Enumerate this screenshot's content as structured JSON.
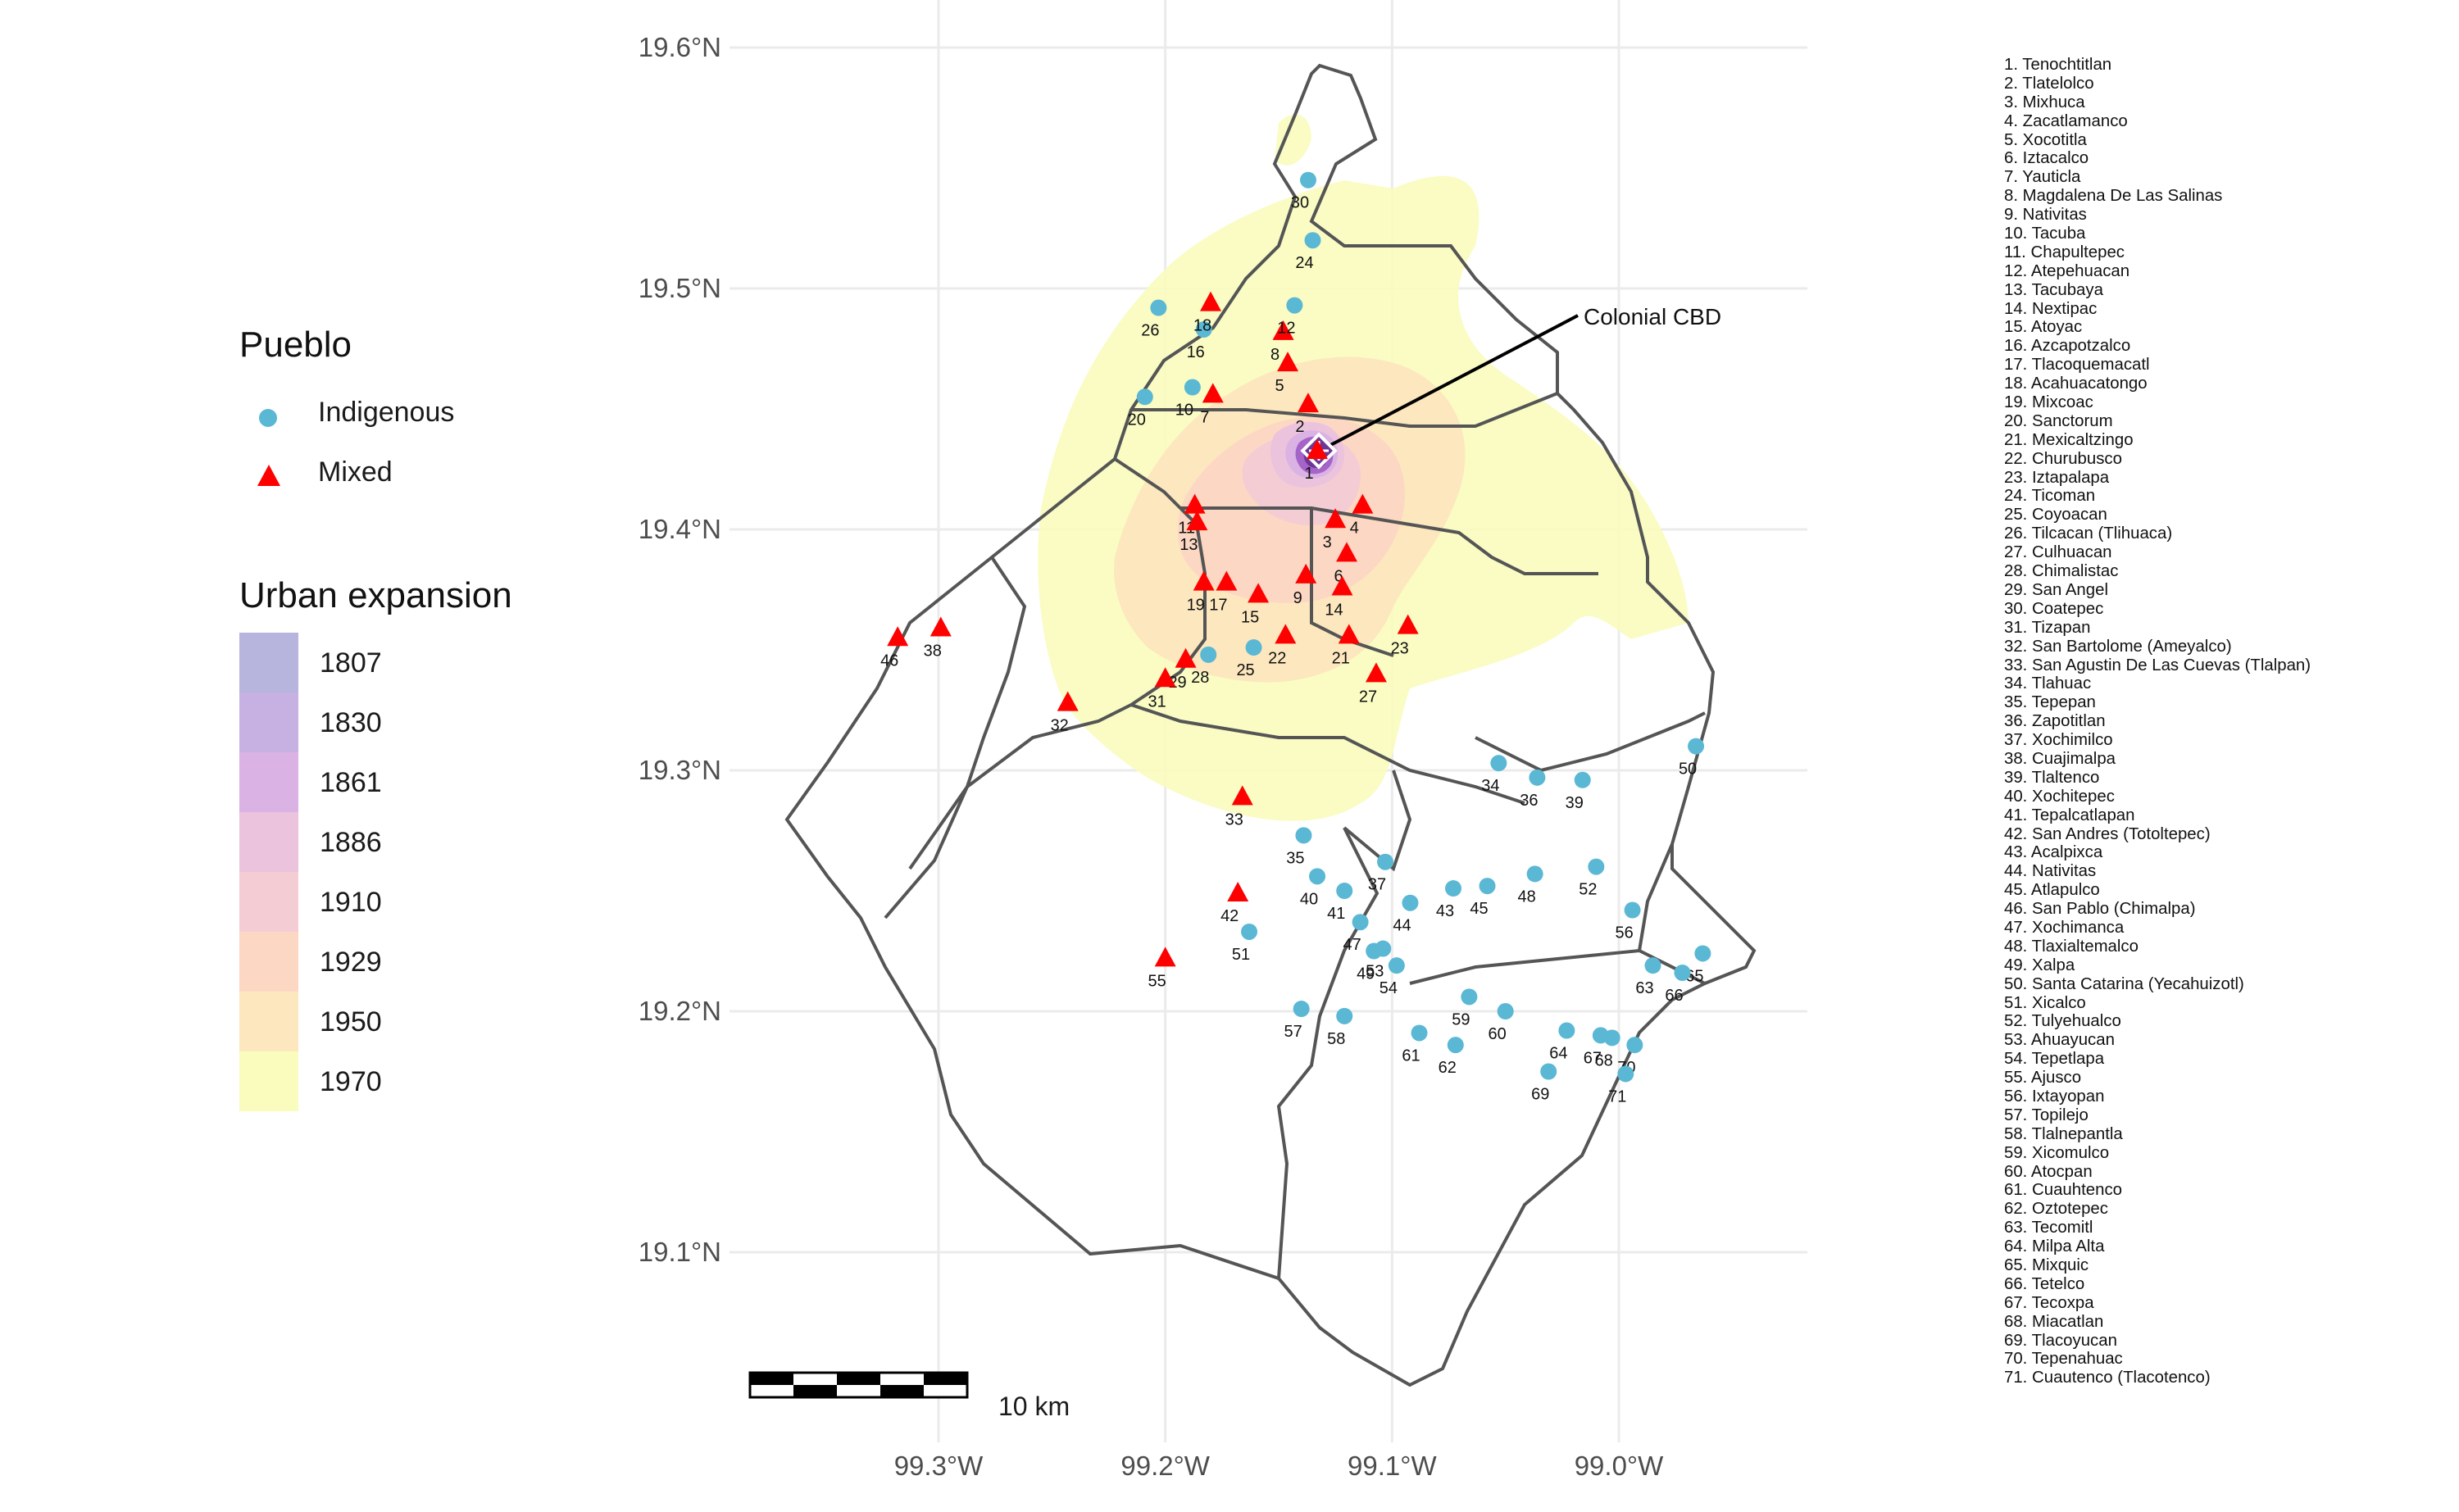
{
  "axes": {
    "y_ticks": [
      "19.6°N",
      "19.5°N",
      "19.4°N",
      "19.3°N",
      "19.2°N",
      "19.1°N"
    ],
    "x_ticks": [
      "99.3°W",
      "99.2°W",
      "99.1°W",
      "99.0°W"
    ]
  },
  "legend_pueblo": {
    "title": "Pueblo",
    "items": [
      {
        "label": "Indigenous",
        "color": "#5ab8d4",
        "shape": "circle"
      },
      {
        "label": "Mixed",
        "color": "#ff0000",
        "shape": "triangle"
      }
    ]
  },
  "legend_expansion": {
    "title": "Urban expansion",
    "items": [
      {
        "label": "1807",
        "color": "#b7b4dd"
      },
      {
        "label": "1830",
        "color": "#c7b1e3"
      },
      {
        "label": "1861",
        "color": "#dbb2e4"
      },
      {
        "label": "1886",
        "color": "#ebc3dd"
      },
      {
        "label": "1910",
        "color": "#f4ccd4"
      },
      {
        "label": "1929",
        "color": "#fcd7c3"
      },
      {
        "label": "1950",
        "color": "#fde7be"
      },
      {
        "label": "1970",
        "color": "#fafcbe"
      }
    ]
  },
  "annotation": {
    "label": "Colonial CBD"
  },
  "scale_bar": {
    "label": "10 km"
  },
  "pueblo_list": [
    "1. Tenochtitlan",
    "2. Tlatelolco",
    "3. Mixhuca",
    "4. Zacatlamanco",
    "5. Xocotitla",
    "6. Iztacalco",
    "7. Yauticla",
    "8. Magdalena De Las Salinas",
    "9. Nativitas",
    "10. Tacuba",
    "11. Chapultepec",
    "12. Atepehuacan",
    "13. Tacubaya",
    "14. Nextipac",
    "15. Atoyac",
    "16. Azcapotzalco",
    "17. Tlacoquemacatl",
    "18. Acahuacatongo",
    "19. Mixcoac",
    "20. Sanctorum",
    "21. Mexicaltzingo",
    "22. Churubusco",
    "23. Iztapalapa",
    "24. Ticoman",
    "25. Coyoacan",
    "26. Tilcacan (Tlihuaca)",
    "27. Culhuacan",
    "28. Chimalistac",
    "29. San Angel",
    "30. Coatepec",
    "31. Tizapan",
    "32. San Bartolome (Ameyalco)",
    "33. San Agustin De Las Cuevas (Tlalpan)",
    "34. Tlahuac",
    "35. Tepepan",
    "36. Zapotitlan",
    "37. Xochimilco",
    "38. Cuajimalpa",
    "39. Tlaltenco",
    "40. Xochitepec",
    "41. Tepalcatlapan",
    "42. San Andres (Totoltepec)",
    "43. Acalpixca",
    "44. Nativitas",
    "45. Atlapulco",
    "46. San Pablo (Chimalpa)",
    "47. Xochimanca",
    "48. Tlaxialtemalco",
    "49. Xalpa",
    "50. Santa Catarina (Yecahuizotl)",
    "51. Xicalco",
    "52. Tulyehualco",
    "53. Ahuayucan",
    "54. Tepetlapa",
    "55. Ajusco",
    "56. Ixtayopan",
    "57. Topilejo",
    "58. Tlalnepantla",
    "59. Xicomulco",
    "60. Atocpan",
    "61. Cuauhtenco",
    "62. Oztotepec",
    "63. Tecomitl",
    "64. Milpa Alta",
    "65. Mixquic",
    "66. Tetelco",
    "67. Tecoxpa",
    "68. Miacatlan",
    "69. Tlacoyucan",
    "70. Tepenahuac",
    "71. Cuautenco (Tlacotenco)"
  ],
  "points": [
    {
      "id": "1",
      "type": "Mixed",
      "lon": -99.133,
      "lat": 19.4326
    },
    {
      "id": "2",
      "type": "Mixed",
      "lon": -99.137,
      "lat": 19.452
    },
    {
      "id": "3",
      "type": "Mixed",
      "lon": -99.125,
      "lat": 19.404
    },
    {
      "id": "4",
      "type": "Mixed",
      "lon": -99.113,
      "lat": 19.41
    },
    {
      "id": "5",
      "type": "Mixed",
      "lon": -99.146,
      "lat": 19.469
    },
    {
      "id": "6",
      "type": "Mixed",
      "lon": -99.12,
      "lat": 19.39
    },
    {
      "id": "7",
      "type": "Mixed",
      "lon": -99.179,
      "lat": 19.456
    },
    {
      "id": "8",
      "type": "Mixed",
      "lon": -99.148,
      "lat": 19.482
    },
    {
      "id": "9",
      "type": "Mixed",
      "lon": -99.138,
      "lat": 19.381
    },
    {
      "id": "10",
      "type": "Indigenous",
      "lon": -99.188,
      "lat": 19.459
    },
    {
      "id": "11",
      "type": "Mixed",
      "lon": -99.187,
      "lat": 19.41
    },
    {
      "id": "12",
      "type": "Indigenous",
      "lon": -99.143,
      "lat": 19.493
    },
    {
      "id": "13",
      "type": "Mixed",
      "lon": -99.186,
      "lat": 19.403
    },
    {
      "id": "14",
      "type": "Mixed",
      "lon": -99.122,
      "lat": 19.376
    },
    {
      "id": "15",
      "type": "Mixed",
      "lon": -99.159,
      "lat": 19.373
    },
    {
      "id": "16",
      "type": "Indigenous",
      "lon": -99.183,
      "lat": 19.483
    },
    {
      "id": "17",
      "type": "Mixed",
      "lon": -99.173,
      "lat": 19.378
    },
    {
      "id": "18",
      "type": "Mixed",
      "lon": -99.18,
      "lat": 19.494
    },
    {
      "id": "19",
      "type": "Mixed",
      "lon": -99.183,
      "lat": 19.378
    },
    {
      "id": "20",
      "type": "Indigenous",
      "lon": -99.209,
      "lat": 19.455
    },
    {
      "id": "21",
      "type": "Mixed",
      "lon": -99.119,
      "lat": 19.356
    },
    {
      "id": "22",
      "type": "Mixed",
      "lon": -99.147,
      "lat": 19.356
    },
    {
      "id": "23",
      "type": "Mixed",
      "lon": -99.093,
      "lat": 19.36
    },
    {
      "id": "24",
      "type": "Indigenous",
      "lon": -99.135,
      "lat": 19.52
    },
    {
      "id": "25",
      "type": "Indigenous",
      "lon": -99.161,
      "lat": 19.351
    },
    {
      "id": "26",
      "type": "Indigenous",
      "lon": -99.203,
      "lat": 19.492
    },
    {
      "id": "27",
      "type": "Mixed",
      "lon": -99.107,
      "lat": 19.34
    },
    {
      "id": "28",
      "type": "Indigenous",
      "lon": -99.181,
      "lat": 19.348
    },
    {
      "id": "29",
      "type": "Mixed",
      "lon": -99.191,
      "lat": 19.346
    },
    {
      "id": "30",
      "type": "Indigenous",
      "lon": -99.137,
      "lat": 19.545
    },
    {
      "id": "31",
      "type": "Mixed",
      "lon": -99.2,
      "lat": 19.338
    },
    {
      "id": "32",
      "type": "Mixed",
      "lon": -99.243,
      "lat": 19.328
    },
    {
      "id": "33",
      "type": "Mixed",
      "lon": -99.166,
      "lat": 19.289
    },
    {
      "id": "34",
      "type": "Indigenous",
      "lon": -99.053,
      "lat": 19.303
    },
    {
      "id": "35",
      "type": "Indigenous",
      "lon": -99.139,
      "lat": 19.273
    },
    {
      "id": "36",
      "type": "Indigenous",
      "lon": -99.036,
      "lat": 19.297
    },
    {
      "id": "37",
      "type": "Indigenous",
      "lon": -99.103,
      "lat": 19.262
    },
    {
      "id": "38",
      "type": "Mixed",
      "lon": -99.299,
      "lat": 19.359
    },
    {
      "id": "39",
      "type": "Indigenous",
      "lon": -99.016,
      "lat": 19.296
    },
    {
      "id": "40",
      "type": "Indigenous",
      "lon": -99.133,
      "lat": 19.256
    },
    {
      "id": "41",
      "type": "Indigenous",
      "lon": -99.121,
      "lat": 19.25
    },
    {
      "id": "42",
      "type": "Mixed",
      "lon": -99.168,
      "lat": 19.249
    },
    {
      "id": "43",
      "type": "Indigenous",
      "lon": -99.073,
      "lat": 19.251
    },
    {
      "id": "44",
      "type": "Indigenous",
      "lon": -99.092,
      "lat": 19.245
    },
    {
      "id": "45",
      "type": "Indigenous",
      "lon": -99.058,
      "lat": 19.252
    },
    {
      "id": "46",
      "type": "Mixed",
      "lon": -99.318,
      "lat": 19.355
    },
    {
      "id": "47",
      "type": "Indigenous",
      "lon": -99.114,
      "lat": 19.237
    },
    {
      "id": "48",
      "type": "Indigenous",
      "lon": -99.037,
      "lat": 19.257
    },
    {
      "id": "49",
      "type": "Indigenous",
      "lon": -99.108,
      "lat": 19.225
    },
    {
      "id": "50",
      "type": "Indigenous",
      "lon": -98.966,
      "lat": 19.31
    },
    {
      "id": "51",
      "type": "Indigenous",
      "lon": -99.163,
      "lat": 19.233
    },
    {
      "id": "52",
      "type": "Indigenous",
      "lon": -99.01,
      "lat": 19.26
    },
    {
      "id": "53",
      "type": "Indigenous",
      "lon": -99.104,
      "lat": 19.226
    },
    {
      "id": "54",
      "type": "Indigenous",
      "lon": -99.098,
      "lat": 19.219
    },
    {
      "id": "55",
      "type": "Mixed",
      "lon": -99.2,
      "lat": 19.222
    },
    {
      "id": "56",
      "type": "Indigenous",
      "lon": -98.994,
      "lat": 19.242
    },
    {
      "id": "57",
      "type": "Indigenous",
      "lon": -99.14,
      "lat": 19.201
    },
    {
      "id": "58",
      "type": "Indigenous",
      "lon": -99.121,
      "lat": 19.198
    },
    {
      "id": "59",
      "type": "Indigenous",
      "lon": -99.066,
      "lat": 19.206
    },
    {
      "id": "60",
      "type": "Indigenous",
      "lon": -99.05,
      "lat": 19.2
    },
    {
      "id": "61",
      "type": "Indigenous",
      "lon": -99.088,
      "lat": 19.191
    },
    {
      "id": "62",
      "type": "Indigenous",
      "lon": -99.072,
      "lat": 19.186
    },
    {
      "id": "63",
      "type": "Indigenous",
      "lon": -98.985,
      "lat": 19.219
    },
    {
      "id": "64",
      "type": "Indigenous",
      "lon": -99.023,
      "lat": 19.192
    },
    {
      "id": "65",
      "type": "Indigenous",
      "lon": -98.963,
      "lat": 19.224
    },
    {
      "id": "66",
      "type": "Indigenous",
      "lon": -98.972,
      "lat": 19.216
    },
    {
      "id": "67",
      "type": "Indigenous",
      "lon": -99.008,
      "lat": 19.19
    },
    {
      "id": "68",
      "type": "Indigenous",
      "lon": -99.003,
      "lat": 19.189
    },
    {
      "id": "69",
      "type": "Indigenous",
      "lon": -99.031,
      "lat": 19.175
    },
    {
      "id": "70",
      "type": "Indigenous",
      "lon": -98.993,
      "lat": 19.186
    },
    {
      "id": "71",
      "type": "Indigenous",
      "lon": -98.997,
      "lat": 19.174
    }
  ]
}
